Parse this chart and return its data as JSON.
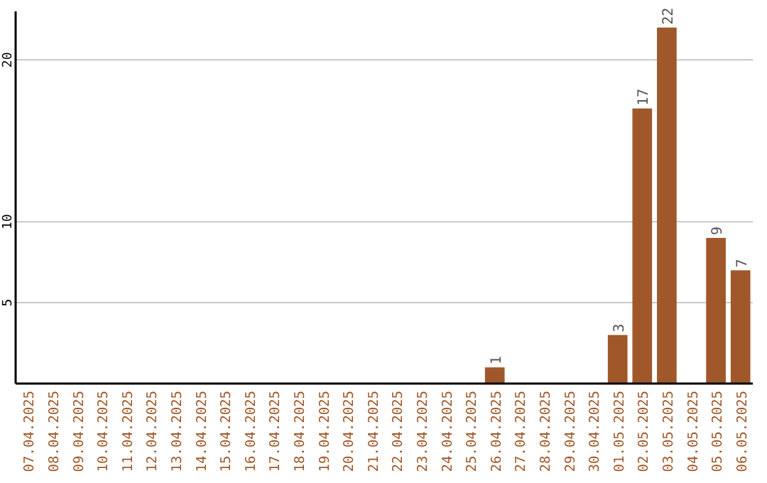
{
  "chart_data": {
    "type": "bar",
    "categories": [
      "07.04.2025",
      "08.04.2025",
      "09.04.2025",
      "10.04.2025",
      "11.04.2025",
      "12.04.2025",
      "13.04.2025",
      "14.04.2025",
      "15.04.2025",
      "16.04.2025",
      "17.04.2025",
      "18.04.2025",
      "19.04.2025",
      "20.04.2025",
      "21.04.2025",
      "22.04.2025",
      "23.04.2025",
      "24.04.2025",
      "25.04.2025",
      "26.04.2025",
      "27.04.2025",
      "28.04.2025",
      "29.04.2025",
      "30.04.2025",
      "01.05.2025",
      "02.05.2025",
      "03.05.2025",
      "04.05.2025",
      "05.05.2025",
      "06.05.2025"
    ],
    "values": [
      0,
      0,
      0,
      0,
      0,
      0,
      0,
      0,
      0,
      0,
      0,
      0,
      0,
      0,
      0,
      0,
      0,
      0,
      0,
      1,
      0,
      0,
      0,
      0,
      3,
      17,
      22,
      0,
      9,
      7
    ],
    "value_labels": [
      null,
      null,
      null,
      null,
      null,
      null,
      null,
      null,
      null,
      null,
      null,
      null,
      null,
      null,
      null,
      null,
      null,
      null,
      null,
      "1",
      null,
      null,
      null,
      null,
      "3",
      "17",
      "22",
      null,
      "9",
      "7"
    ],
    "color": "#a0582a",
    "ylim": [
      0,
      23
    ],
    "yticks": [
      5,
      10,
      20
    ],
    "grid": "y"
  }
}
